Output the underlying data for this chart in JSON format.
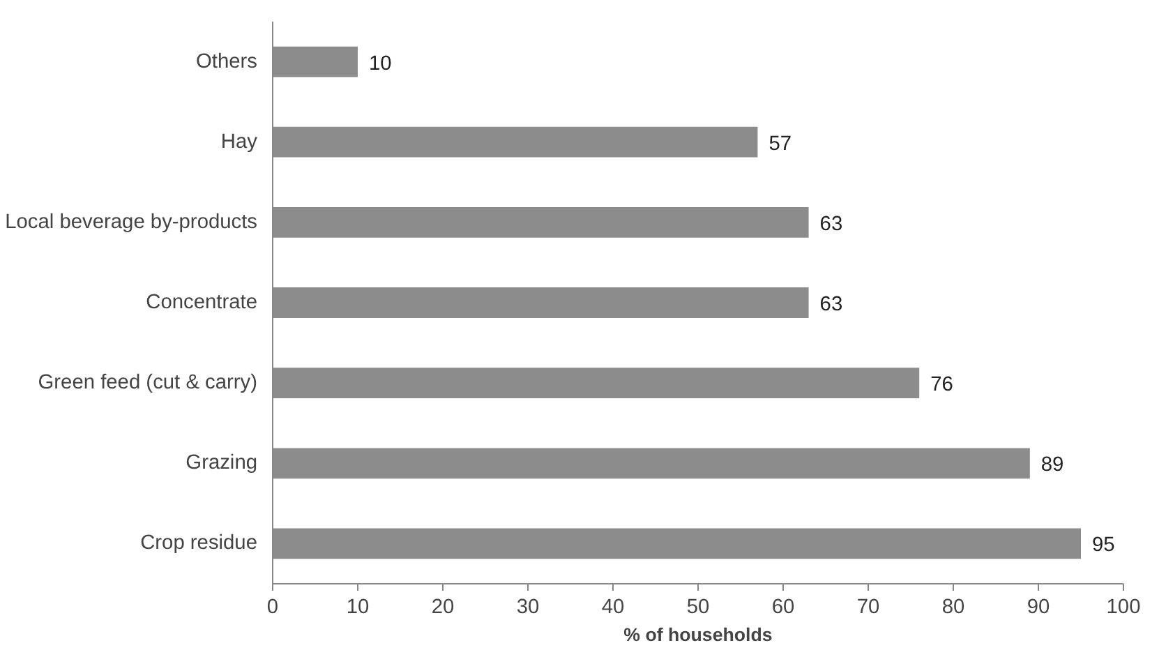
{
  "chart_data": {
    "type": "bar",
    "orientation": "horizontal",
    "xlabel": "% of households",
    "categories": [
      "Others",
      "Hay",
      "Local beverage by-products",
      "Concentrate",
      "Green feed (cut & carry)",
      "Grazing",
      "Crop residue"
    ],
    "values": [
      10,
      57,
      63,
      63,
      76,
      89,
      95
    ],
    "color": "#8c8c8c",
    "xlim": [
      0,
      100
    ],
    "xticks": [
      0,
      10,
      20,
      30,
      40,
      50,
      60,
      70,
      80,
      90,
      100
    ],
    "grid": false,
    "data_labels": true
  }
}
